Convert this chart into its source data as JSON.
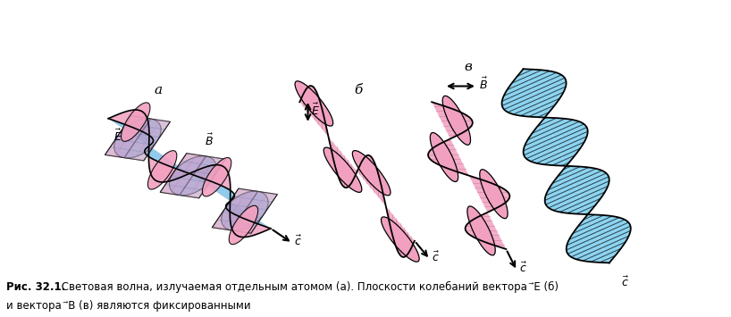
{
  "pink": "#F2A0C0",
  "blue": "#80D0F0",
  "purple": "#9090CC",
  "black": "#000000",
  "white": "#FFFFFF",
  "label_a": "а",
  "label_b": "б",
  "label_c": "в",
  "caption_bold": "Рис. 32.1.",
  "caption_line1": " Световая волна, излучаемая отдельным атомом (а). Плоскости колебаний вектора  ⃗E (б)",
  "caption_line2": "и вектора  ⃗B (в) являются фиксированными"
}
